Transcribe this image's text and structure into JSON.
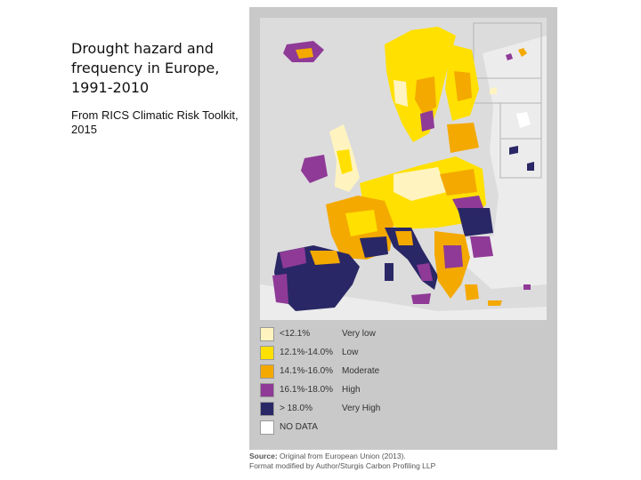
{
  "slide": {
    "title": "Drought hazard and frequency in Europe, 1991-2010",
    "subtitle": "From RICS Climatic Risk Toolkit, 2015"
  },
  "colors": {
    "very_low": "#fff4bf",
    "low": "#ffe000",
    "moderate": "#f4a900",
    "high": "#8f3a97",
    "very_high": "#2a2766",
    "no_data": "#ffffff",
    "sea": "#dcdcdc",
    "non_eu_land": "#ececec"
  },
  "legend": {
    "items": [
      {
        "range": "<12.1%",
        "level": "Very low"
      },
      {
        "range": "12.1%-14.0%",
        "level": "Low"
      },
      {
        "range": "14.1%-16.0%",
        "level": "Moderate"
      },
      {
        "range": "16.1%-18.0%",
        "level": "High"
      },
      {
        "range": "> 18.0%",
        "level": "Very High"
      },
      {
        "range": "NO DATA",
        "level": ""
      }
    ]
  },
  "source": {
    "label": "Source:",
    "line1": "Original from European Union (2013).",
    "line2": "Format modified by Author/Sturgis Carbon Profiling LLP"
  }
}
